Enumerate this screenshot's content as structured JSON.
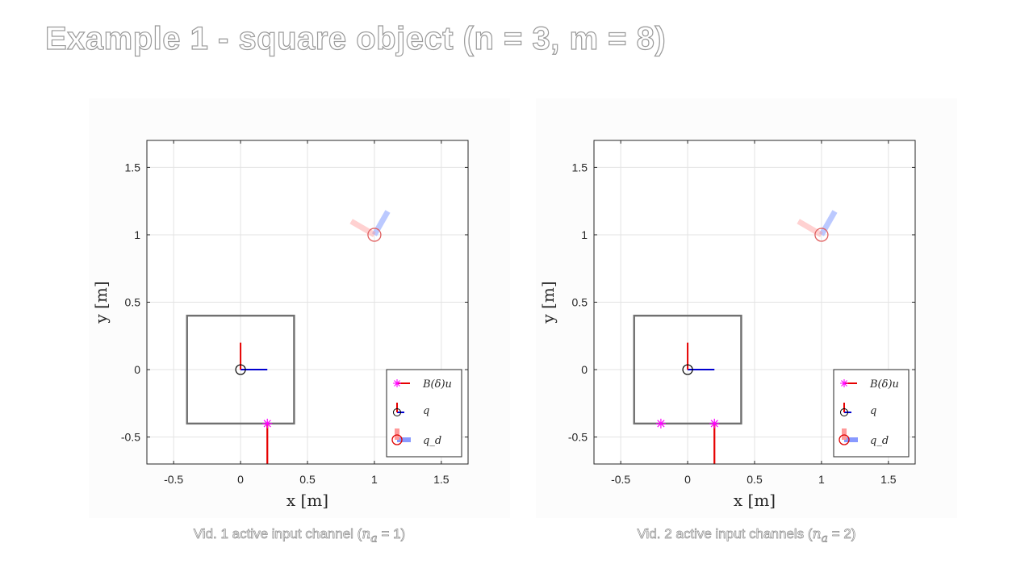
{
  "slide": {
    "title": "Example 1 - square object (n = 3, m = 8)"
  },
  "colors": {
    "force": "#ff00ff",
    "force_arrow": "#e60000",
    "y_axis_red": "#e60000",
    "x_axis_blue": "#0000d0",
    "object": "#707070",
    "target": "#e06060",
    "target_x": "#ff9999",
    "target_y": "#aabbff"
  },
  "chart_data": [
    {
      "type": "scatter",
      "name": "panel-left",
      "caption_prefix": "Vid. 1 active input channel (",
      "caption_var": "n",
      "caption_sub": "a",
      "caption_suffix": " = 1)",
      "xlabel": "x [m]",
      "ylabel": "y [m]",
      "xlim": [
        -0.7,
        1.7
      ],
      "ylim": [
        -0.7,
        1.7
      ],
      "xticks": [
        -0.5,
        0,
        0.5,
        1,
        1.5
      ],
      "yticks": [
        -0.5,
        0,
        0.5,
        1,
        1.5
      ],
      "xtick_labels": [
        "-0.5",
        "0",
        "0.5",
        "1",
        "1.5"
      ],
      "ytick_labels": [
        "-0.5",
        "0",
        "0.5",
        "1",
        "1.5"
      ],
      "grid": true,
      "legend_placement": "bottom-right",
      "legend": [
        {
          "key": "force",
          "label": "B(δ)u"
        },
        {
          "key": "pose",
          "label": "q"
        },
        {
          "key": "target",
          "label": "q_d"
        }
      ],
      "object_square": {
        "xmin": -0.4,
        "xmax": 0.4,
        "ymin": -0.4,
        "ymax": 0.4
      },
      "pose": {
        "x": 0,
        "y": 0,
        "theta_deg": 0
      },
      "target": {
        "x": 1,
        "y": 1,
        "theta_deg": 60
      },
      "contact_points": [
        {
          "x": 0.2,
          "y": -0.4,
          "force_dx": 0,
          "force_dy": -0.35
        }
      ]
    },
    {
      "type": "scatter",
      "name": "panel-right",
      "caption_prefix": "Vid. 2 active input channels (",
      "caption_var": "n",
      "caption_sub": "a",
      "caption_suffix": " = 2)",
      "xlabel": "x [m]",
      "ylabel": "y [m]",
      "xlim": [
        -0.7,
        1.7
      ],
      "ylim": [
        -0.7,
        1.7
      ],
      "xticks": [
        -0.5,
        0,
        0.5,
        1,
        1.5
      ],
      "yticks": [
        -0.5,
        0,
        0.5,
        1,
        1.5
      ],
      "xtick_labels": [
        "-0.5",
        "0",
        "0.5",
        "1",
        "1.5"
      ],
      "ytick_labels": [
        "-0.5",
        "0",
        "0.5",
        "1",
        "1.5"
      ],
      "grid": true,
      "legend_placement": "bottom-right",
      "legend": [
        {
          "key": "force",
          "label": "B(δ)u"
        },
        {
          "key": "pose",
          "label": "q"
        },
        {
          "key": "target",
          "label": "q_d"
        }
      ],
      "object_square": {
        "xmin": -0.4,
        "xmax": 0.4,
        "ymin": -0.4,
        "ymax": 0.4
      },
      "pose": {
        "x": 0,
        "y": 0,
        "theta_deg": 0
      },
      "target": {
        "x": 1,
        "y": 1,
        "theta_deg": 60
      },
      "contact_points": [
        {
          "x": -0.2,
          "y": -0.4,
          "force_dx": 0,
          "force_dy": 0
        },
        {
          "x": 0.2,
          "y": -0.4,
          "force_dx": 0,
          "force_dy": -0.35
        }
      ]
    }
  ]
}
